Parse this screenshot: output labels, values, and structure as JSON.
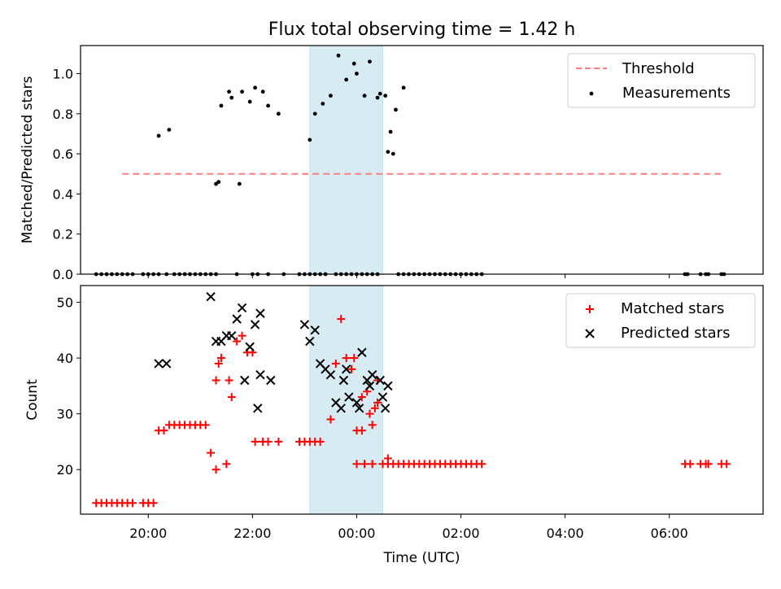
{
  "figure": {
    "title": "Flux total observing time = 1.42 h"
  },
  "chart_data": [
    {
      "type": "scatter",
      "panel": "top",
      "xlabel": "",
      "ylabel": "Matched/Predicted stars",
      "xlim": [
        18.7,
        7.8
      ],
      "ylim": [
        0,
        1.14
      ],
      "yticks": [
        0.0,
        0.2,
        0.4,
        0.6,
        0.8,
        1.0
      ],
      "ytick_labels": [
        "0.0",
        "0.2",
        "0.4",
        "0.6",
        "0.8",
        "1.0"
      ],
      "xticks": [
        20,
        22,
        0,
        2,
        4,
        6
      ],
      "grid": false,
      "shaded_region": {
        "x": [
          23.1,
          24.5
        ],
        "color": "#add8e6"
      },
      "legend_position": "upper right",
      "legend": [
        {
          "label": "Threshold",
          "style": "dashed-line",
          "color": "#ff7f7f"
        },
        {
          "label": "Measurements",
          "style": "dot",
          "color": "#000000"
        }
      ],
      "series": [
        {
          "name": "Threshold",
          "kind": "line",
          "color": "#ff7f7f",
          "x": [
            19.5,
            31.0
          ],
          "y": [
            0.5,
            0.5
          ]
        },
        {
          "name": "Measurements",
          "kind": "dot",
          "color": "#000000",
          "x": [
            19.0,
            19.1,
            19.2,
            19.3,
            19.4,
            19.5,
            19.6,
            19.7,
            19.9,
            20.0,
            20.1,
            20.2,
            20.35,
            20.5,
            20.6,
            20.7,
            20.8,
            20.9,
            21.0,
            21.1,
            21.2,
            21.3,
            20.2,
            20.4,
            21.3,
            21.35,
            21.4,
            21.55,
            21.6,
            21.75,
            21.8,
            21.95,
            22.05,
            22.2,
            22.3,
            22.5,
            21.7,
            22.0,
            22.1,
            22.3,
            22.6,
            22.9,
            23.0,
            23.1,
            23.2,
            23.3,
            23.4,
            23.6,
            23.7,
            23.8,
            23.9,
            24.0,
            24.1,
            24.2,
            24.3,
            24.4,
            23.1,
            23.2,
            23.35,
            23.5,
            23.65,
            23.8,
            23.95,
            24.15,
            24.25,
            24.45,
            24.55,
            24.65,
            24.75,
            24.9,
            24.0,
            24.4,
            24.6,
            24.7,
            24.8,
            24.9,
            25.0,
            25.1,
            25.2,
            25.3,
            25.4,
            25.5,
            25.6,
            25.7,
            25.8,
            25.9,
            26.0,
            26.1,
            26.2,
            26.3,
            26.4,
            30.3,
            30.35,
            30.6,
            30.7,
            30.75,
            31.0,
            31.05
          ],
          "y": [
            0,
            0,
            0,
            0,
            0,
            0,
            0,
            0,
            0,
            0,
            0,
            0,
            0,
            0,
            0,
            0,
            0,
            0,
            0,
            0,
            0,
            0,
            0.69,
            0.72,
            0.45,
            0.46,
            0.84,
            0.91,
            0.88,
            0.45,
            0.91,
            0.86,
            0.93,
            0.91,
            0.84,
            0.8,
            0,
            0,
            0,
            0,
            0,
            0,
            0,
            0,
            0,
            0,
            0,
            0,
            0,
            0,
            0,
            0,
            0,
            0,
            0,
            0,
            0.67,
            0.8,
            0.85,
            0.89,
            1.09,
            0.97,
            1.05,
            0.89,
            1.06,
            0.9,
            0.89,
            0.71,
            0.82,
            0.93,
            1.0,
            0.88,
            0.61,
            0.6,
            0,
            0,
            0,
            0,
            0,
            0,
            0,
            0,
            0,
            0,
            0,
            0,
            0,
            0,
            0,
            0,
            0,
            0,
            0,
            0,
            0,
            0,
            0,
            0
          ]
        }
      ]
    },
    {
      "type": "scatter",
      "panel": "bottom",
      "xlabel": "Time (UTC)",
      "ylabel": "Count",
      "xlim": [
        18.7,
        7.8
      ],
      "ylim": [
        12,
        53
      ],
      "yticks": [
        20,
        30,
        40,
        50
      ],
      "ytick_labels": [
        "20",
        "30",
        "40",
        "50"
      ],
      "xticks": [
        20,
        22,
        0,
        2,
        4,
        6
      ],
      "xtick_labels": [
        "20:00",
        "22:00",
        "00:00",
        "02:00",
        "04:00",
        "06:00"
      ],
      "grid": false,
      "shaded_region": {
        "x": [
          23.1,
          24.5
        ],
        "color": "#add8e6"
      },
      "legend_position": "upper right",
      "legend": [
        {
          "label": "Matched stars",
          "style": "plus",
          "color": "#ff0000"
        },
        {
          "label": "Predicted stars",
          "style": "x",
          "color": "#000000"
        }
      ],
      "series": [
        {
          "name": "Matched stars",
          "kind": "plus",
          "color": "#ff0000",
          "x": [
            19.0,
            19.1,
            19.2,
            19.3,
            19.4,
            19.5,
            19.6,
            19.7,
            19.9,
            20.0,
            20.1,
            20.2,
            20.3,
            20.4,
            20.5,
            20.6,
            20.7,
            20.8,
            20.9,
            21.0,
            21.1,
            21.2,
            21.3,
            21.3,
            21.4,
            21.6,
            21.35,
            21.5,
            21.55,
            21.7,
            21.8,
            21.9,
            22.0,
            22.05,
            22.2,
            22.3,
            22.5,
            22.9,
            23.0,
            23.1,
            23.2,
            23.3,
            23.5,
            23.6,
            23.7,
            23.8,
            23.9,
            23.95,
            24.1,
            24.2,
            24.3,
            24.4,
            24.0,
            24.1,
            24.25,
            24.35,
            24.4,
            24.6,
            24.0,
            24.15,
            24.3,
            24.5,
            24.6,
            24.7,
            24.8,
            24.9,
            25.0,
            25.1,
            25.2,
            25.3,
            25.4,
            25.5,
            25.6,
            25.7,
            25.8,
            25.9,
            26.0,
            26.1,
            26.2,
            26.3,
            26.4,
            30.3,
            30.4,
            30.6,
            30.7,
            30.75,
            31.0,
            31.1
          ],
          "y": [
            14,
            14,
            14,
            14,
            14,
            14,
            14,
            14,
            14,
            14,
            14,
            27,
            27,
            28,
            28,
            28,
            28,
            28,
            28,
            28,
            28,
            23,
            20,
            36,
            40,
            33,
            39,
            21,
            36,
            43,
            44,
            41,
            41,
            25,
            25,
            25,
            25,
            25,
            25,
            25,
            25,
            25,
            29,
            39,
            47,
            40,
            38,
            40,
            33,
            34,
            28,
            32,
            27,
            27,
            30,
            31,
            36,
            22,
            21,
            21,
            21,
            21,
            21,
            21,
            21,
            21,
            21,
            21,
            21,
            21,
            21,
            21,
            21,
            21,
            21,
            21,
            21,
            21,
            21,
            21,
            21,
            21,
            21,
            21,
            21,
            21,
            21,
            21
          ]
        },
        {
          "name": "Predicted stars",
          "kind": "x",
          "color": "#000000",
          "x": [
            20.2,
            20.35,
            21.2,
            21.3,
            21.4,
            21.5,
            21.6,
            21.7,
            21.85,
            21.95,
            22.05,
            22.15,
            21.8,
            22.1,
            22.15,
            22.35,
            23.0,
            23.1,
            23.2,
            23.3,
            23.4,
            23.5,
            23.6,
            23.7,
            23.75,
            23.8,
            23.85,
            24.0,
            24.05,
            24.1,
            24.2,
            24.25,
            24.3,
            24.45,
            24.5,
            24.55,
            24.6
          ],
          "y": [
            39,
            39,
            51,
            43,
            43,
            44,
            44,
            47,
            36,
            42,
            46,
            48,
            49,
            31,
            37,
            36,
            46,
            43,
            45,
            39,
            38,
            37,
            32,
            31,
            36,
            38,
            33,
            32,
            31,
            41,
            36,
            35,
            37,
            36,
            33,
            31,
            35
          ]
        }
      ]
    }
  ]
}
